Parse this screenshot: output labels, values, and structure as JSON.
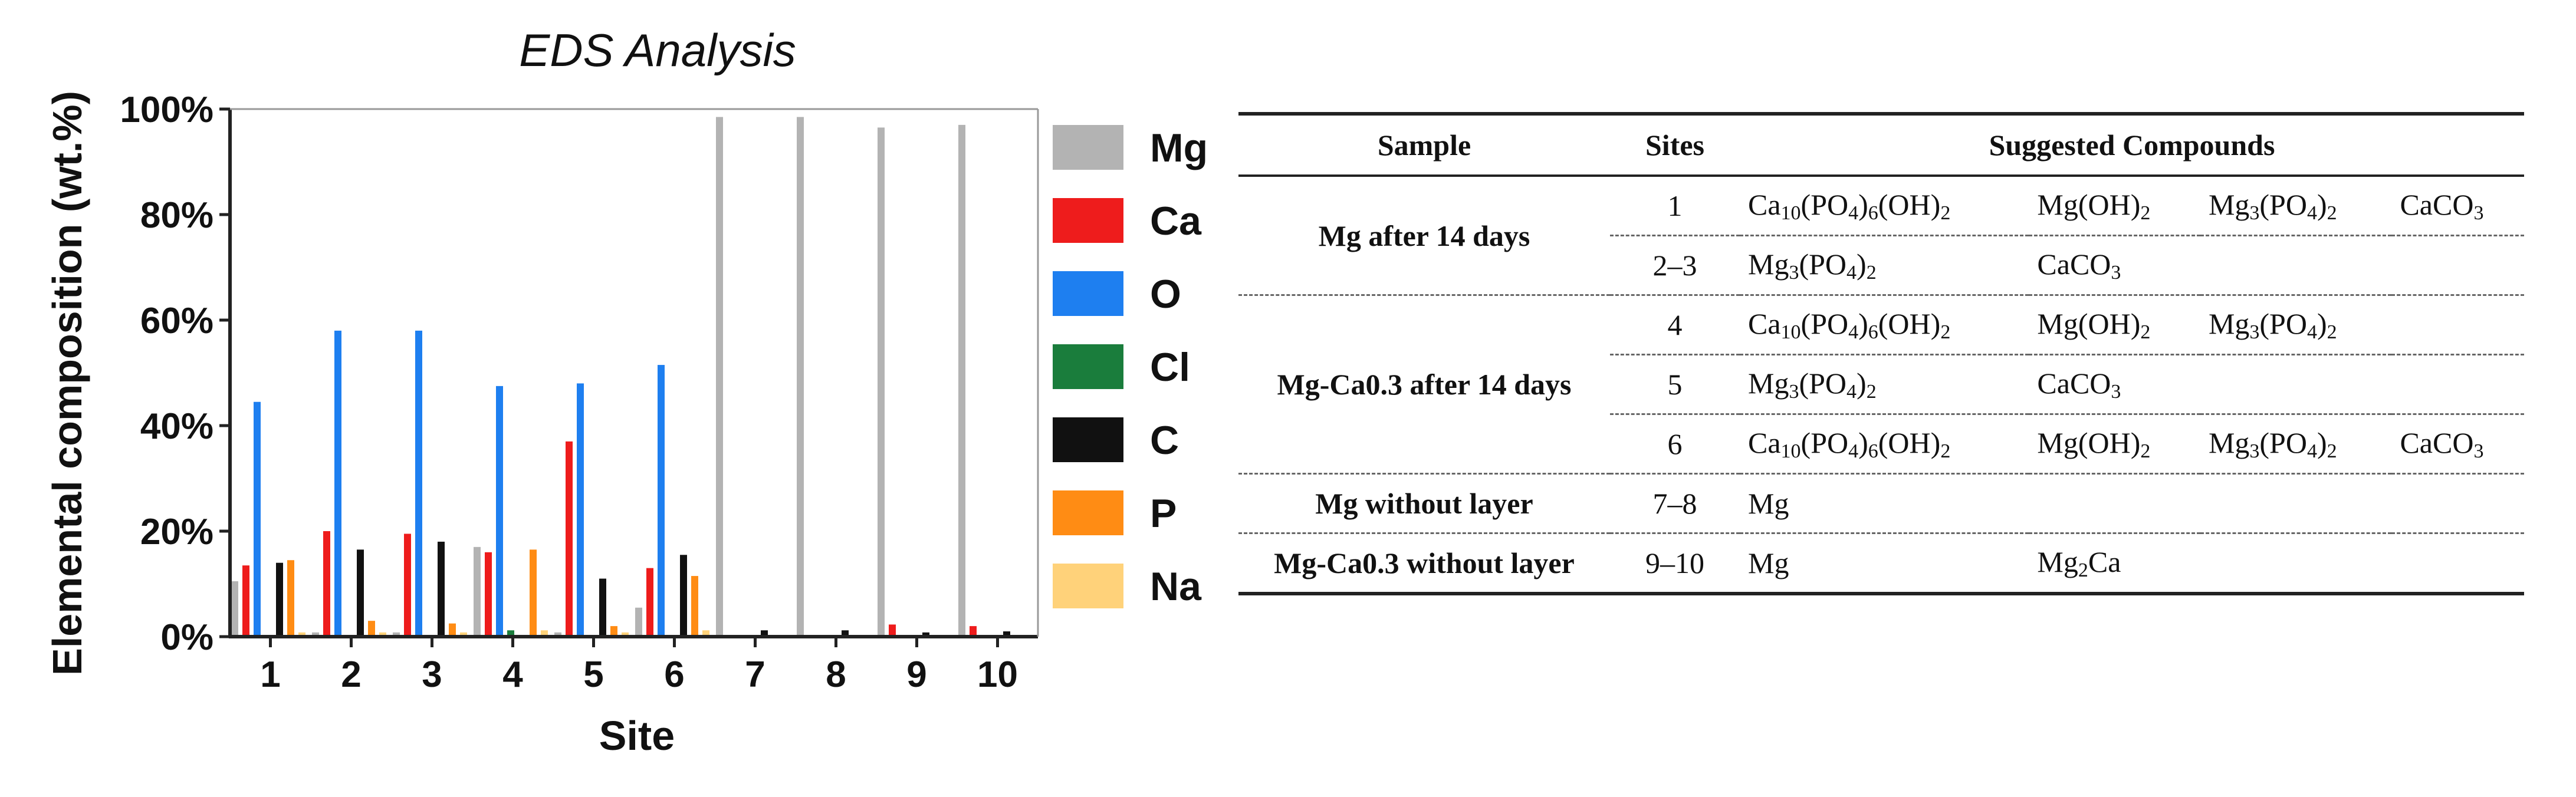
{
  "chart_data": {
    "type": "bar",
    "title": "EDS Analysis",
    "xlabel": "Site",
    "ylabel": "Elemental composition (wt.%)",
    "ylim": [
      0,
      100
    ],
    "yticks": [
      "0%",
      "20%",
      "40%",
      "60%",
      "80%",
      "100%"
    ],
    "categories": [
      "1",
      "2",
      "3",
      "4",
      "5",
      "6",
      "7",
      "8",
      "9",
      "10"
    ],
    "legend_position": "right",
    "series": [
      {
        "name": "Mg",
        "color": "#b3b3b3",
        "values": [
          10.5,
          0.8,
          0.8,
          17,
          0.8,
          5.5,
          98.5,
          98.5,
          96.5,
          97
        ]
      },
      {
        "name": "Ca",
        "color": "#ee1c1c",
        "values": [
          13.5,
          20,
          19.5,
          16,
          37,
          13,
          0,
          0,
          2.3,
          2
        ]
      },
      {
        "name": "O",
        "color": "#1e7ff0",
        "values": [
          44.5,
          58,
          58,
          47.5,
          48,
          51.5,
          0,
          0,
          0,
          0
        ]
      },
      {
        "name": "Cl",
        "color": "#1a7d3c",
        "values": [
          0.3,
          0,
          0,
          1.2,
          0,
          0,
          0,
          0,
          0,
          0
        ]
      },
      {
        "name": "C",
        "color": "#111111",
        "values": [
          14,
          16.5,
          18,
          0,
          11,
          15.5,
          1.2,
          1.2,
          0.8,
          1
        ]
      },
      {
        "name": "P",
        "color": "#ff8c14",
        "values": [
          14.5,
          3,
          2.5,
          16.5,
          2,
          11.5,
          0,
          0,
          0,
          0
        ]
      },
      {
        "name": "Na",
        "color": "#ffd27a",
        "values": [
          0.8,
          0.8,
          0.8,
          1.2,
          0.8,
          1.2,
          0,
          0,
          0,
          0
        ]
      }
    ]
  },
  "table": {
    "headers": [
      "Sample",
      "Sites",
      "Suggested Compounds"
    ],
    "groups": [
      {
        "sample": "Mg after 14 days",
        "rows": [
          {
            "site": "1",
            "compounds": [
              {
                "base": "Ca",
                "sub1": "10",
                "mid": "(PO",
                "sub2": "4",
                "mid2": ")",
                "sub3": "6",
                "tail": "(OH)",
                "sub4": "2"
              },
              "Mg(OH)2",
              "Mg3(PO4)2",
              "CaCO3"
            ]
          },
          {
            "site": "2–3",
            "compounds": [
              "Mg3(PO4)2",
              "CaCO3",
              "",
              ""
            ]
          }
        ]
      },
      {
        "sample": "Mg-Ca0.3 after 14 days",
        "rows": [
          {
            "site": "4",
            "compounds": [
              "Ca10(PO4)6(OH)2",
              "Mg(OH)2",
              "Mg3(PO4)2",
              ""
            ]
          },
          {
            "site": "5",
            "compounds": [
              "Mg3(PO4)2",
              "CaCO3",
              "",
              ""
            ]
          },
          {
            "site": "6",
            "compounds": [
              "Ca10(PO4)6(OH)2",
              "Mg(OH)2",
              "Mg3(PO4)2",
              "CaCO3"
            ]
          }
        ]
      },
      {
        "sample": "Mg without layer",
        "rows": [
          {
            "site": "7–8",
            "compounds": [
              "Mg",
              "",
              "",
              ""
            ]
          }
        ]
      },
      {
        "sample": "Mg-Ca0.3 without layer",
        "rows": [
          {
            "site": "9–10",
            "compounds": [
              "Mg",
              "Mg2Ca",
              "",
              ""
            ]
          }
        ]
      }
    ]
  }
}
